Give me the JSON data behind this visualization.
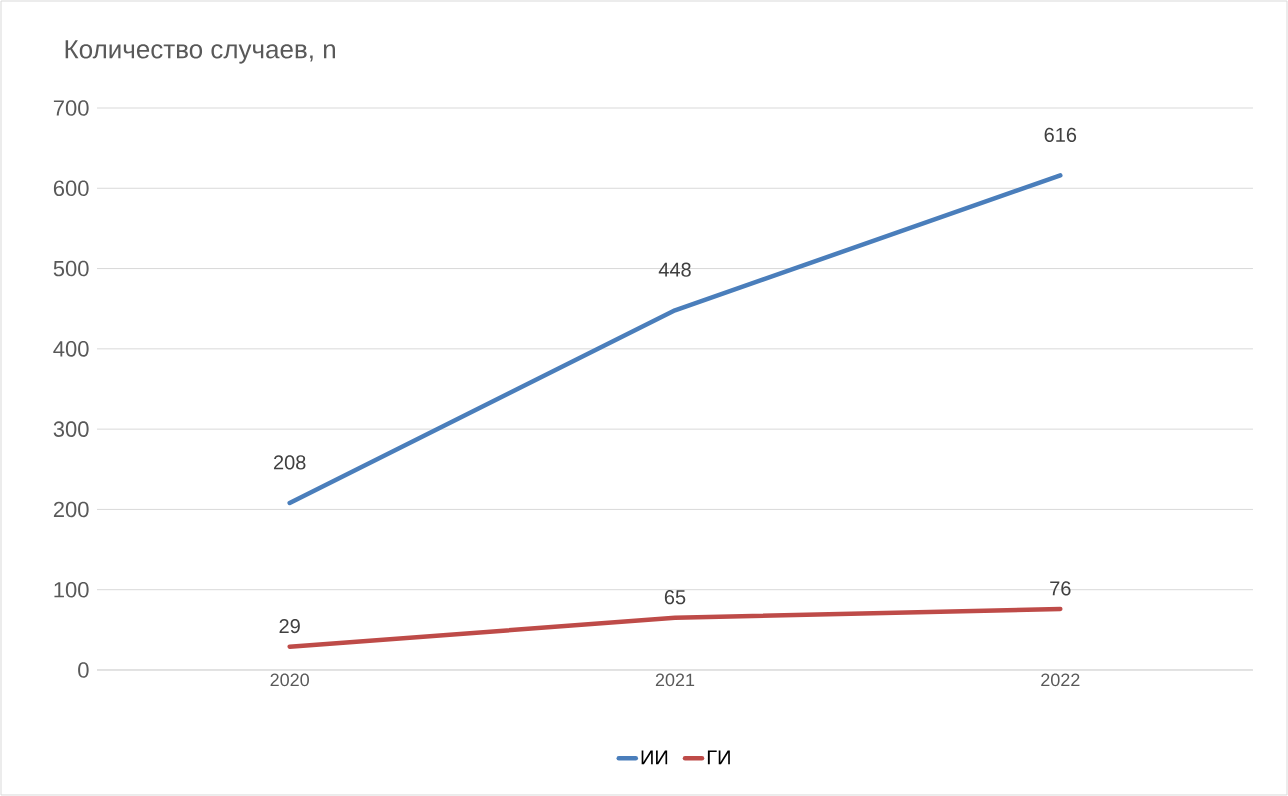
{
  "chart_data": {
    "type": "line",
    "title": "Количество случаев, n",
    "categories": [
      "2020",
      "2021",
      "2022"
    ],
    "series": [
      {
        "name": "ИИ",
        "color": "#4a7ebb",
        "values": [
          208,
          448,
          616
        ]
      },
      {
        "name": "ГИ",
        "color": "#be4b48",
        "values": [
          29,
          65,
          76
        ]
      }
    ],
    "ylim": [
      0,
      700
    ],
    "yticks": [
      0,
      100,
      200,
      300,
      400,
      500,
      600,
      700
    ],
    "grid": "y",
    "legend": "bottom",
    "data_labels": true,
    "marker": "none",
    "line_style": "solid"
  }
}
